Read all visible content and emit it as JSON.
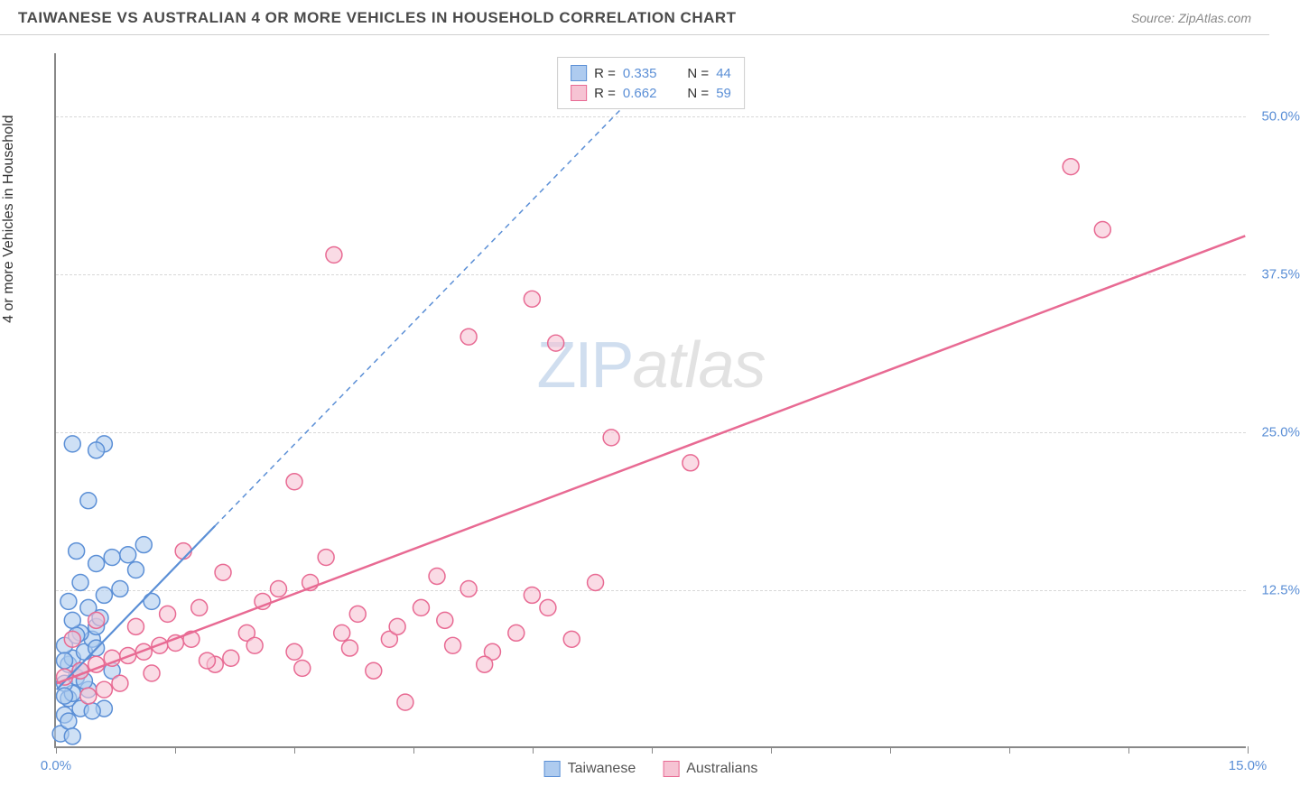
{
  "title": "TAIWANESE VS AUSTRALIAN 4 OR MORE VEHICLES IN HOUSEHOLD CORRELATION CHART",
  "source_label": "Source: ",
  "source_name": "ZipAtlas.com",
  "y_axis_label": "4 or more Vehicles in Household",
  "watermark_a": "ZIP",
  "watermark_b": "atlas",
  "chart": {
    "type": "scatter",
    "background_color": "#ffffff",
    "grid_color": "#d8d8d8",
    "axis_color": "#888888",
    "xlim": [
      0,
      15
    ],
    "ylim": [
      0,
      55
    ],
    "x_ticks": [
      0,
      1.5,
      3,
      4.5,
      6,
      7.5,
      9,
      10.5,
      12,
      13.5,
      15
    ],
    "x_tick_labels": {
      "0": "0.0%",
      "15": "15.0%"
    },
    "y_ticks": [
      12.5,
      25,
      37.5,
      50
    ],
    "y_tick_labels": {
      "12.5": "12.5%",
      "25": "25.0%",
      "37.5": "37.5%",
      "50": "50.0%"
    },
    "marker_radius": 9,
    "marker_stroke_width": 1.5,
    "marker_fill_opacity": 0.25,
    "series": [
      {
        "name": "Taiwanese",
        "color": "#5b8fd6",
        "fill": "#aecbef",
        "r_label": "R = ",
        "r_value": "0.335",
        "n_label": "N = ",
        "n_value": "44",
        "trend_solid": {
          "x1": 0,
          "y1": 4.5,
          "x2": 2.0,
          "y2": 17.5
        },
        "trend_dashed": {
          "x1": 2.0,
          "y1": 17.5,
          "x2": 7.5,
          "y2": 53
        },
        "line_width": 2.2,
        "dash_pattern": "6,5",
        "points": [
          [
            0.05,
            1.0
          ],
          [
            0.1,
            2.5
          ],
          [
            0.15,
            3.8
          ],
          [
            0.2,
            4.2
          ],
          [
            0.1,
            5.0
          ],
          [
            0.25,
            5.5
          ],
          [
            0.3,
            6.0
          ],
          [
            0.15,
            6.5
          ],
          [
            0.2,
            7.0
          ],
          [
            0.35,
            7.5
          ],
          [
            0.1,
            8.0
          ],
          [
            0.45,
            8.5
          ],
          [
            0.3,
            9.0
          ],
          [
            0.5,
            9.5
          ],
          [
            0.2,
            10.0
          ],
          [
            0.55,
            10.2
          ],
          [
            0.4,
            11.0
          ],
          [
            0.15,
            11.5
          ],
          [
            0.6,
            12.0
          ],
          [
            0.8,
            12.5
          ],
          [
            0.3,
            13.0
          ],
          [
            1.2,
            11.5
          ],
          [
            1.0,
            14.0
          ],
          [
            0.5,
            14.5
          ],
          [
            0.7,
            15.0
          ],
          [
            0.25,
            15.5
          ],
          [
            0.9,
            15.2
          ],
          [
            0.4,
            19.5
          ],
          [
            1.1,
            16.0
          ],
          [
            0.6,
            24.0
          ],
          [
            0.2,
            24.0
          ],
          [
            0.5,
            23.5
          ],
          [
            0.15,
            2.0
          ],
          [
            0.3,
            3.0
          ],
          [
            0.4,
            4.5
          ],
          [
            0.1,
            6.8
          ],
          [
            0.5,
            7.8
          ],
          [
            0.25,
            8.8
          ],
          [
            0.7,
            6.0
          ],
          [
            0.35,
            5.2
          ],
          [
            0.2,
            0.8
          ],
          [
            0.6,
            3.0
          ],
          [
            0.1,
            4.0
          ],
          [
            0.45,
            2.8
          ]
        ]
      },
      {
        "name": "Australians",
        "color": "#e86a93",
        "fill": "#f6c3d3",
        "r_label": "R = ",
        "r_value": "0.662",
        "n_label": "N = ",
        "n_value": "59",
        "trend_solid": {
          "x1": 0,
          "y1": 5.0,
          "x2": 15,
          "y2": 40.5
        },
        "trend_dashed": null,
        "line_width": 2.5,
        "dash_pattern": null,
        "points": [
          [
            0.1,
            5.5
          ],
          [
            0.3,
            6.0
          ],
          [
            0.5,
            6.5
          ],
          [
            0.7,
            7.0
          ],
          [
            0.9,
            7.2
          ],
          [
            1.1,
            7.5
          ],
          [
            1.3,
            8.0
          ],
          [
            1.5,
            8.2
          ],
          [
            1.7,
            8.5
          ],
          [
            1.0,
            9.5
          ],
          [
            1.4,
            10.5
          ],
          [
            1.8,
            11.0
          ],
          [
            2.0,
            6.5
          ],
          [
            2.2,
            7.0
          ],
          [
            2.4,
            9.0
          ],
          [
            2.6,
            11.5
          ],
          [
            2.8,
            12.5
          ],
          [
            3.0,
            7.5
          ],
          [
            3.2,
            13.0
          ],
          [
            3.4,
            15.0
          ],
          [
            3.6,
            9.0
          ],
          [
            3.8,
            10.5
          ],
          [
            4.0,
            6.0
          ],
          [
            4.2,
            8.5
          ],
          [
            4.4,
            3.5
          ],
          [
            4.6,
            11.0
          ],
          [
            4.8,
            13.5
          ],
          [
            3.0,
            21.0
          ],
          [
            5.0,
            8.0
          ],
          [
            5.2,
            12.5
          ],
          [
            5.5,
            7.5
          ],
          [
            5.8,
            9.0
          ],
          [
            6.0,
            12.0
          ],
          [
            6.2,
            11.0
          ],
          [
            6.5,
            8.5
          ],
          [
            6.8,
            13.0
          ],
          [
            7.0,
            24.5
          ],
          [
            3.5,
            39.0
          ],
          [
            5.2,
            32.5
          ],
          [
            6.0,
            35.5
          ],
          [
            6.3,
            32.0
          ],
          [
            8.0,
            22.5
          ],
          [
            1.6,
            15.5
          ],
          [
            2.1,
            13.8
          ],
          [
            0.4,
            4.0
          ],
          [
            0.6,
            4.5
          ],
          [
            0.8,
            5.0
          ],
          [
            1.2,
            5.8
          ],
          [
            1.9,
            6.8
          ],
          [
            2.5,
            8.0
          ],
          [
            3.1,
            6.2
          ],
          [
            3.7,
            7.8
          ],
          [
            4.3,
            9.5
          ],
          [
            4.9,
            10.0
          ],
          [
            5.4,
            6.5
          ],
          [
            12.8,
            46.0
          ],
          [
            13.2,
            41.0
          ],
          [
            0.2,
            8.5
          ],
          [
            0.5,
            10.0
          ]
        ]
      }
    ]
  },
  "legend_bottom": [
    {
      "label": "Taiwanese",
      "color": "#5b8fd6",
      "fill": "#aecbef"
    },
    {
      "label": "Australians",
      "color": "#e86a93",
      "fill": "#f6c3d3"
    }
  ]
}
